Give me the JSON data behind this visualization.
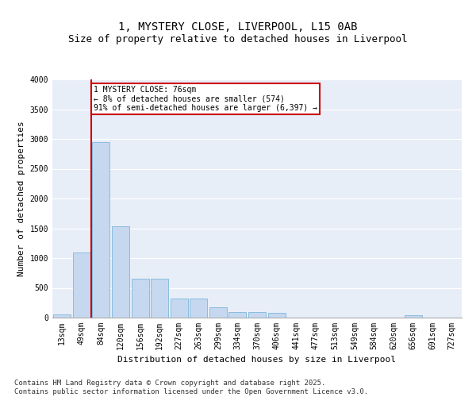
{
  "title": "1, MYSTERY CLOSE, LIVERPOOL, L15 0AB",
  "subtitle": "Size of property relative to detached houses in Liverpool",
  "xlabel": "Distribution of detached houses by size in Liverpool",
  "ylabel": "Number of detached properties",
  "categories": [
    "13sqm",
    "49sqm",
    "84sqm",
    "120sqm",
    "156sqm",
    "192sqm",
    "227sqm",
    "263sqm",
    "299sqm",
    "334sqm",
    "370sqm",
    "406sqm",
    "441sqm",
    "477sqm",
    "513sqm",
    "549sqm",
    "584sqm",
    "620sqm",
    "656sqm",
    "691sqm",
    "727sqm"
  ],
  "values": [
    50,
    1100,
    2950,
    1530,
    650,
    650,
    315,
    315,
    175,
    100,
    100,
    75,
    0,
    0,
    0,
    0,
    0,
    0,
    40,
    0,
    0
  ],
  "bar_color": "#c5d8f0",
  "bar_edge_color": "#6baed6",
  "vline_color": "#cc0000",
  "vline_x_index": 1.5,
  "annotation_text": "1 MYSTERY CLOSE: 76sqm\n← 8% of detached houses are smaller (574)\n91% of semi-detached houses are larger (6,397) →",
  "annotation_box_color": "#cc0000",
  "ylim": [
    0,
    4000
  ],
  "yticks": [
    0,
    500,
    1000,
    1500,
    2000,
    2500,
    3000,
    3500,
    4000
  ],
  "plot_bg_color": "#e8eef8",
  "footer_text": "Contains HM Land Registry data © Crown copyright and database right 2025.\nContains public sector information licensed under the Open Government Licence v3.0.",
  "title_fontsize": 10,
  "subtitle_fontsize": 9,
  "axis_label_fontsize": 8,
  "tick_fontsize": 7,
  "footer_fontsize": 6.5
}
